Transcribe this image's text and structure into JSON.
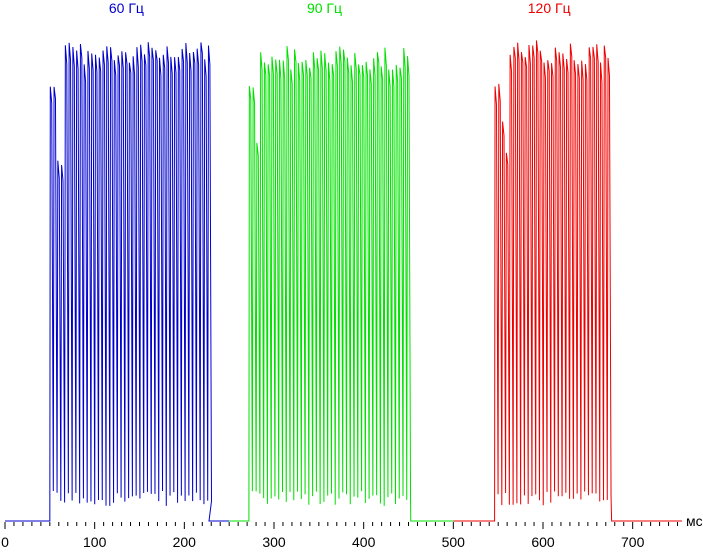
{
  "chart_data": {
    "type": "line",
    "title": "",
    "xlabel": "",
    "ylabel": "",
    "x_unit": "мс",
    "xlim": [
      0,
      755
    ],
    "ylim": [
      0,
      100
    ],
    "x_ticks": [
      0,
      100,
      200,
      300,
      400,
      500,
      600,
      700
    ],
    "x_tick_labels": [
      "0",
      "100",
      "200",
      "300",
      "400",
      "500",
      "600",
      "700"
    ],
    "grid": false,
    "legend": "none",
    "series": [
      {
        "name": "60 Гц",
        "color": "#0000cc",
        "x_range": [
          0,
          250
        ],
        "baseline_end": 50,
        "settle_start": 66,
        "end": 227,
        "pulse_period_ms": 4.2,
        "initial_peak": 88,
        "initial_plateau": 79,
        "plateau": 96,
        "trough": 3,
        "baseline": 0
      },
      {
        "name": "90 Гц",
        "color": "#00e000",
        "x_range": [
          250,
          500
        ],
        "baseline_end": 272,
        "settle_start": 283,
        "end": 452,
        "pulse_period_ms": 4.2,
        "initial_peak": 87,
        "initial_plateau": 78,
        "plateau": 95,
        "trough": 3,
        "baseline": 0
      },
      {
        "name": "120 Гц",
        "color": "#ee0000",
        "x_range": [
          500,
          755
        ],
        "baseline_end": 546,
        "settle_start": 560,
        "end": 676,
        "pulse_period_ms": 4.2,
        "initial_peak": 88,
        "initial_plateau": 80,
        "plateau": 96,
        "trough": 3,
        "baseline": 0
      }
    ]
  }
}
